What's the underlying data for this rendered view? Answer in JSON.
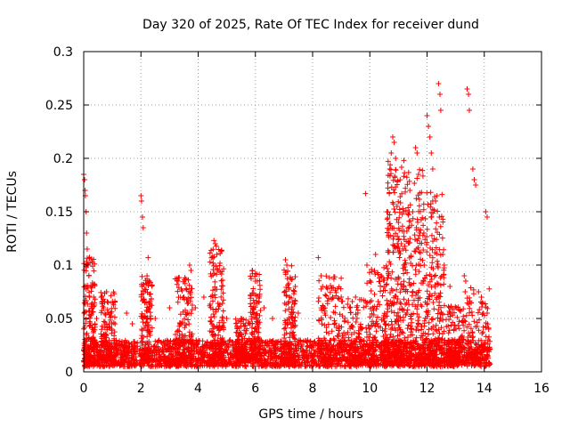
{
  "chart_data": {
    "type": "scatter",
    "title": "Day 320 of 2025, Rate Of TEC Index for receiver dund",
    "xlabel": "GPS time / hours",
    "ylabel": "ROTI / TECUs",
    "xlim": [
      0,
      16
    ],
    "ylim": [
      0,
      0.3
    ],
    "x_ticks": [
      "0",
      "2",
      "4",
      "6",
      "8",
      "10",
      "12",
      "14",
      "16"
    ],
    "y_ticks": [
      "0",
      "0.05",
      "0.1",
      "0.15",
      "0.2",
      "0.25",
      "0.3"
    ],
    "grid": true,
    "legend": "none",
    "marker": "+",
    "color": "#ff0000",
    "series": [
      {
        "points": [
          [
            0.0,
            0.185
          ],
          [
            0.03,
            0.18
          ],
          [
            0.05,
            0.17
          ],
          [
            0.06,
            0.165
          ],
          [
            0.08,
            0.15
          ],
          [
            0.1,
            0.13
          ],
          [
            0.12,
            0.115
          ],
          [
            0.15,
            0.1
          ],
          [
            0.18,
            0.09
          ],
          [
            0.2,
            0.07
          ],
          [
            0.25,
            0.08
          ],
          [
            0.35,
            0.07
          ],
          [
            0.45,
            0.05
          ],
          [
            0.7,
            0.06
          ],
          [
            0.8,
            0.075
          ],
          [
            0.85,
            0.065
          ],
          [
            0.95,
            0.055
          ],
          [
            1.5,
            0.055
          ],
          [
            1.7,
            0.045
          ],
          [
            2.0,
            0.165
          ],
          [
            2.02,
            0.16
          ],
          [
            2.05,
            0.145
          ],
          [
            2.08,
            0.135
          ],
          [
            2.25,
            0.107
          ],
          [
            2.3,
            0.085
          ],
          [
            2.5,
            0.05
          ],
          [
            3.0,
            0.06
          ],
          [
            3.3,
            0.085
          ],
          [
            3.5,
            0.07
          ],
          [
            3.7,
            0.1
          ],
          [
            3.75,
            0.095
          ],
          [
            3.9,
            0.06
          ],
          [
            4.2,
            0.07
          ],
          [
            4.55,
            0.123
          ],
          [
            4.6,
            0.12
          ],
          [
            4.65,
            0.11
          ],
          [
            4.7,
            0.095
          ],
          [
            5.0,
            0.05
          ],
          [
            5.5,
            0.05
          ],
          [
            5.9,
            0.095
          ],
          [
            6.0,
            0.085
          ],
          [
            6.3,
            0.06
          ],
          [
            6.6,
            0.05
          ],
          [
            7.05,
            0.105
          ],
          [
            7.1,
            0.1
          ],
          [
            7.2,
            0.07
          ],
          [
            7.5,
            0.055
          ],
          [
            8.2,
            0.107
          ],
          [
            8.3,
            0.09
          ],
          [
            8.35,
            0.08
          ],
          [
            8.7,
            0.07
          ],
          [
            9.0,
            0.07
          ],
          [
            9.5,
            0.07
          ],
          [
            9.85,
            0.167
          ],
          [
            9.9,
            0.1
          ],
          [
            10.0,
            0.085
          ],
          [
            10.2,
            0.11
          ],
          [
            10.4,
            0.09
          ],
          [
            10.6,
            0.15
          ],
          [
            10.7,
            0.19
          ],
          [
            10.75,
            0.205
          ],
          [
            10.8,
            0.22
          ],
          [
            10.85,
            0.215
          ],
          [
            10.9,
            0.2
          ],
          [
            11.0,
            0.14
          ],
          [
            11.1,
            0.12
          ],
          [
            11.2,
            0.1
          ],
          [
            11.4,
            0.17
          ],
          [
            11.5,
            0.15
          ],
          [
            11.6,
            0.21
          ],
          [
            11.65,
            0.205
          ],
          [
            11.7,
            0.185
          ],
          [
            11.75,
            0.13
          ],
          [
            11.9,
            0.1
          ],
          [
            12.0,
            0.24
          ],
          [
            12.05,
            0.23
          ],
          [
            12.1,
            0.22
          ],
          [
            12.15,
            0.205
          ],
          [
            12.2,
            0.19
          ],
          [
            12.3,
            0.16
          ],
          [
            12.35,
            0.165
          ],
          [
            12.4,
            0.27
          ],
          [
            12.45,
            0.26
          ],
          [
            12.48,
            0.245
          ],
          [
            12.55,
            0.11
          ],
          [
            12.6,
            0.1
          ],
          [
            12.8,
            0.08
          ],
          [
            13.3,
            0.09
          ],
          [
            13.35,
            0.085
          ],
          [
            13.4,
            0.265
          ],
          [
            13.45,
            0.26
          ],
          [
            13.48,
            0.245
          ],
          [
            13.6,
            0.19
          ],
          [
            13.65,
            0.18
          ],
          [
            13.7,
            0.175
          ],
          [
            13.8,
            0.075
          ],
          [
            13.9,
            0.07
          ],
          [
            14.05,
            0.15
          ],
          [
            14.1,
            0.145
          ],
          [
            14.1,
            0.055
          ],
          [
            14.15,
            0.04
          ]
        ],
        "band": {
          "x_start": 0,
          "x_end": 14.2,
          "y_min": 0.005,
          "y_max": 0.03
        },
        "clusters": [
          {
            "x_start": 0.0,
            "x_end": 0.4,
            "y_min": 0.005,
            "y_max": 0.11
          },
          {
            "x_start": 0.6,
            "x_end": 1.1,
            "y_min": 0.01,
            "y_max": 0.075
          },
          {
            "x_start": 2.0,
            "x_end": 2.4,
            "y_min": 0.01,
            "y_max": 0.09
          },
          {
            "x_start": 3.2,
            "x_end": 3.8,
            "y_min": 0.01,
            "y_max": 0.09
          },
          {
            "x_start": 4.4,
            "x_end": 4.9,
            "y_min": 0.01,
            "y_max": 0.12
          },
          {
            "x_start": 5.3,
            "x_end": 5.8,
            "y_min": 0.01,
            "y_max": 0.05
          },
          {
            "x_start": 5.8,
            "x_end": 6.2,
            "y_min": 0.01,
            "y_max": 0.095
          },
          {
            "x_start": 7.0,
            "x_end": 7.4,
            "y_min": 0.01,
            "y_max": 0.1
          },
          {
            "x_start": 8.2,
            "x_end": 9.0,
            "y_min": 0.01,
            "y_max": 0.09
          },
          {
            "x_start": 9.0,
            "x_end": 9.9,
            "y_min": 0.01,
            "y_max": 0.07
          },
          {
            "x_start": 9.9,
            "x_end": 10.6,
            "y_min": 0.01,
            "y_max": 0.1
          },
          {
            "x_start": 10.6,
            "x_end": 11.2,
            "y_min": 0.01,
            "y_max": 0.2
          },
          {
            "x_start": 11.2,
            "x_end": 11.9,
            "y_min": 0.01,
            "y_max": 0.19
          },
          {
            "x_start": 11.9,
            "x_end": 12.6,
            "y_min": 0.01,
            "y_max": 0.17
          },
          {
            "x_start": 12.6,
            "x_end": 13.3,
            "y_min": 0.01,
            "y_max": 0.07
          },
          {
            "x_start": 13.3,
            "x_end": 14.2,
            "y_min": 0.01,
            "y_max": 0.08
          }
        ]
      }
    ]
  }
}
